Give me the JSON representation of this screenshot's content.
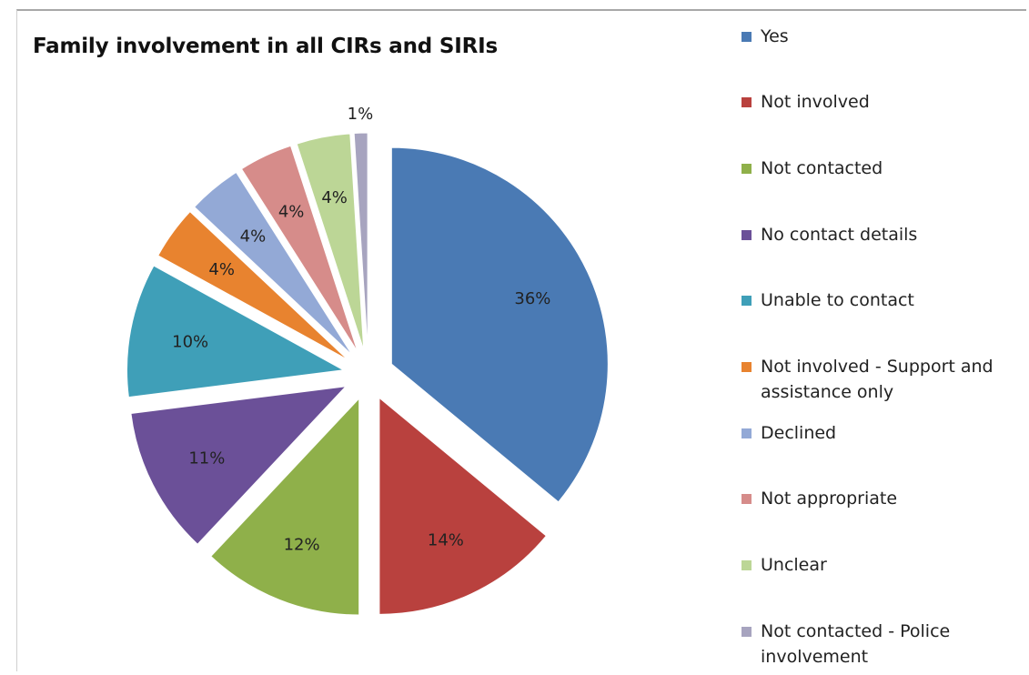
{
  "chart_data": {
    "type": "pie",
    "title": "Family involvement in all CIRs and SIRIs",
    "legend_position": "right",
    "exploded": true,
    "slices": [
      {
        "label": "Yes",
        "value": 36,
        "data_label": "36%",
        "color": "#4a7ab4"
      },
      {
        "label": "Not involved",
        "value": 14,
        "data_label": "14%",
        "color": "#b9413e"
      },
      {
        "label": "Not contacted",
        "value": 12,
        "data_label": "12%",
        "color": "#8fb04a"
      },
      {
        "label": "No contact details",
        "value": 11,
        "data_label": "11%",
        "color": "#6b5098"
      },
      {
        "label": "Unable to contact",
        "value": 10,
        "data_label": "10%",
        "color": "#3f9fb8"
      },
      {
        "label": "Not involved - Support and assistance only",
        "value": 4,
        "data_label": "4%",
        "color": "#e8832f"
      },
      {
        "label": "Declined",
        "value": 4,
        "data_label": "4%",
        "color": "#93a9d6"
      },
      {
        "label": "Not appropriate",
        "value": 4,
        "data_label": "4%",
        "color": "#d68c8a"
      },
      {
        "label": "Unclear",
        "value": 4,
        "data_label": "4%",
        "color": "#bcd696"
      },
      {
        "label": "Not contacted - Police involvement",
        "value": 1,
        "data_label": "1%",
        "color": "#a7a4bf"
      }
    ]
  }
}
